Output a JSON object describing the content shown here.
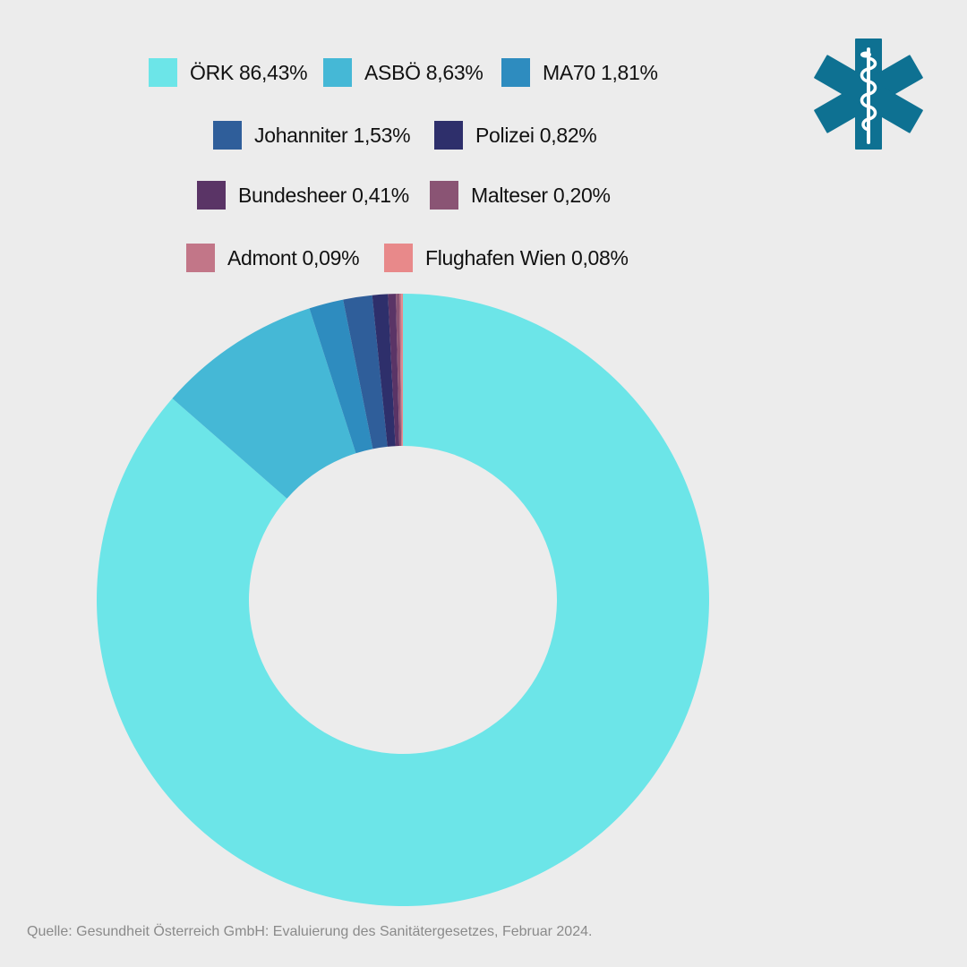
{
  "chart_data": {
    "type": "pie",
    "variant": "donut",
    "categories": [
      "ÖRK",
      "ASBÖ",
      "MA70",
      "Johanniter",
      "Polizei",
      "Bundesheer",
      "Malteser",
      "Admont",
      "Flughafen Wien"
    ],
    "values": [
      86.43,
      8.63,
      1.81,
      1.53,
      0.82,
      0.41,
      0.2,
      0.09,
      0.08
    ],
    "unit": "%",
    "colors": [
      "#6ce5e8",
      "#45b8d6",
      "#2e8cbf",
      "#2f5e9a",
      "#2e2f6b",
      "#5a3466",
      "#8a5474",
      "#c27688",
      "#e8898a"
    ],
    "legend": [
      {
        "label": "ÖRK 86,43%",
        "color": "#6ce5e8"
      },
      {
        "label": "ASBÖ 8,63%",
        "color": "#45b8d6"
      },
      {
        "label": "MA70 1,81%",
        "color": "#2e8cbf"
      },
      {
        "label": "Johanniter 1,53%",
        "color": "#2f5e9a"
      },
      {
        "label": "Polizei 0,82%",
        "color": "#2e2f6b"
      },
      {
        "label": "Bundesheer 0,41%",
        "color": "#5a3466"
      },
      {
        "label": "Malteser 0,20%",
        "color": "#8a5474"
      },
      {
        "label": "Admont 0,09%",
        "color": "#c27688"
      },
      {
        "label": "Flughafen Wien 0,08%",
        "color": "#e8898a"
      }
    ],
    "legend_placement": "top",
    "background": "#ececec"
  },
  "logo": {
    "icon": "star-of-life-icon",
    "color": "#0e7192"
  },
  "source": "Quelle: Gesundheit Österreich GmbH: Evaluierung des Sanitätergesetzes, Februar 2024."
}
